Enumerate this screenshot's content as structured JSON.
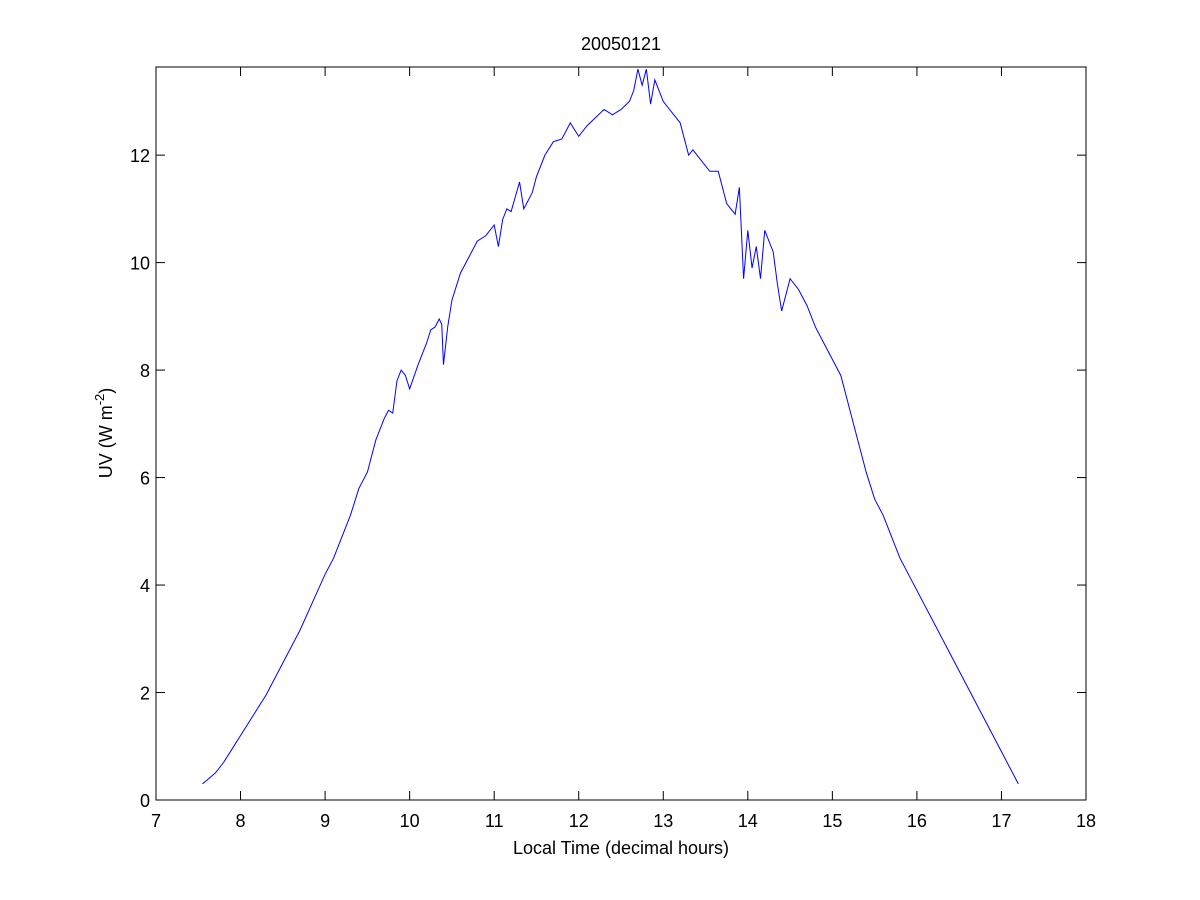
{
  "chart_data": {
    "type": "line",
    "title": "20050121",
    "xlabel": "Local Time (decimal hours)",
    "ylabel": [
      "UV (W m",
      "-2",
      ")"
    ],
    "x": [
      7.55,
      7.7,
      7.8,
      7.9,
      8.0,
      8.1,
      8.2,
      8.3,
      8.4,
      8.5,
      8.6,
      8.7,
      8.8,
      8.9,
      9.0,
      9.1,
      9.2,
      9.3,
      9.4,
      9.5,
      9.6,
      9.7,
      9.75,
      9.8,
      9.85,
      9.9,
      9.95,
      10.0,
      10.1,
      10.2,
      10.25,
      10.3,
      10.35,
      10.38,
      10.4,
      10.45,
      10.5,
      10.6,
      10.7,
      10.8,
      10.9,
      11.0,
      11.05,
      11.1,
      11.15,
      11.2,
      11.3,
      11.35,
      11.45,
      11.5,
      11.6,
      11.7,
      11.8,
      11.9,
      12.0,
      12.1,
      12.2,
      12.3,
      12.4,
      12.5,
      12.6,
      12.65,
      12.7,
      12.75,
      12.8,
      12.85,
      12.9,
      13.0,
      13.1,
      13.2,
      13.3,
      13.35,
      13.45,
      13.55,
      13.65,
      13.75,
      13.85,
      13.9,
      13.95,
      14.0,
      14.05,
      14.1,
      14.15,
      14.2,
      14.3,
      14.35,
      14.4,
      14.5,
      14.6,
      14.7,
      14.8,
      14.9,
      15.0,
      15.1,
      15.2,
      15.3,
      15.4,
      15.5,
      15.6,
      15.7,
      15.8,
      16.0,
      16.2,
      16.4,
      16.6,
      16.8,
      17.0,
      17.2
    ],
    "values": [
      0.3,
      0.5,
      0.7,
      0.95,
      1.2,
      1.45,
      1.7,
      1.95,
      2.25,
      2.55,
      2.85,
      3.15,
      3.5,
      3.85,
      4.2,
      4.5,
      4.9,
      5.3,
      5.8,
      6.1,
      6.7,
      7.1,
      7.25,
      7.2,
      7.8,
      8.0,
      7.9,
      7.65,
      8.1,
      8.5,
      8.75,
      8.8,
      8.95,
      8.85,
      8.1,
      8.8,
      9.3,
      9.8,
      10.1,
      10.4,
      10.5,
      10.7,
      10.3,
      10.8,
      11.0,
      10.95,
      11.5,
      11.0,
      11.3,
      11.6,
      12.0,
      12.25,
      12.3,
      12.6,
      12.35,
      12.55,
      12.7,
      12.85,
      12.75,
      12.85,
      13.0,
      13.2,
      13.6,
      13.3,
      13.6,
      12.95,
      13.4,
      13.0,
      12.8,
      12.6,
      12.0,
      12.1,
      11.9,
      11.7,
      11.7,
      11.1,
      10.9,
      11.4,
      9.7,
      10.6,
      9.9,
      10.3,
      9.7,
      10.6,
      10.2,
      9.6,
      9.1,
      9.7,
      9.5,
      9.2,
      8.8,
      8.5,
      8.2,
      7.9,
      7.3,
      6.7,
      6.1,
      5.6,
      5.3,
      4.9,
      4.5,
      3.9,
      3.3,
      2.7,
      2.1,
      1.5,
      0.9,
      0.3
    ],
    "color": "#0000ff",
    "xlim": [
      7,
      18
    ],
    "xticks": [
      7,
      8,
      9,
      10,
      11,
      12,
      13,
      14,
      15,
      16,
      17,
      18
    ],
    "ylim": [
      0,
      13.64
    ],
    "yticks": [
      0,
      2,
      4,
      6,
      8,
      10,
      12
    ],
    "grid": false
  }
}
